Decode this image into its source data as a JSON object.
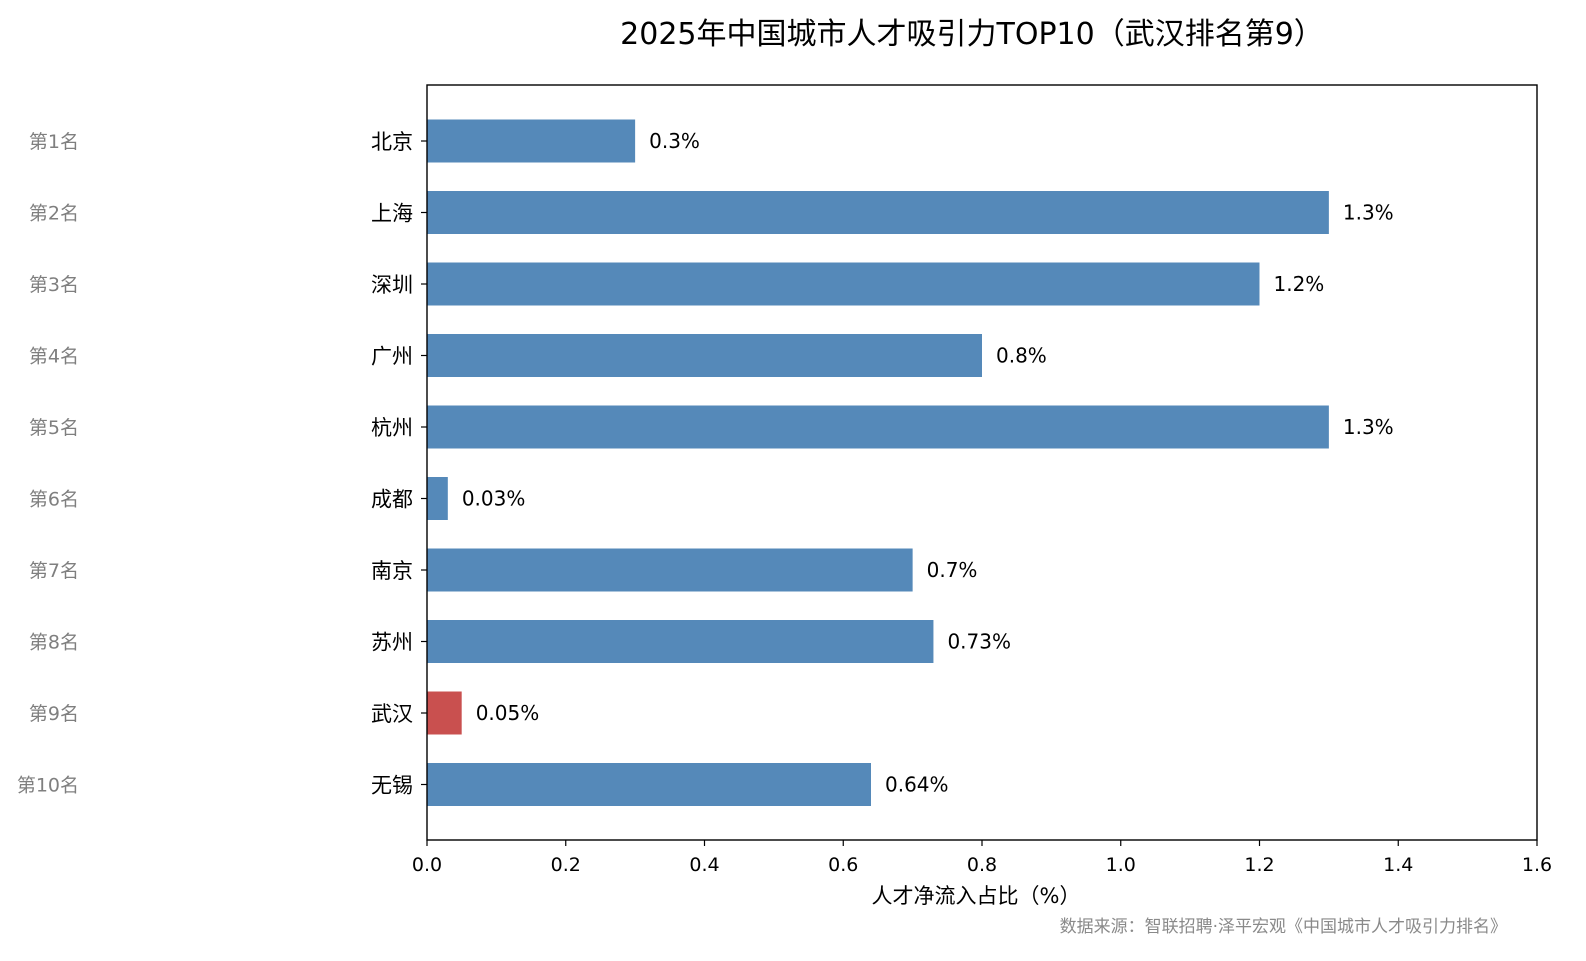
{
  "chart_data": {
    "type": "bar",
    "orientation": "horizontal",
    "title": "2025年中国城市人才吸引力TOP10（武汉排名第9）",
    "xlabel": "人才净流入占比（%）",
    "ylabel": "",
    "xlim": [
      0,
      1.6
    ],
    "xticks": [
      "0.0",
      "0.2",
      "0.4",
      "0.6",
      "0.8",
      "1.0",
      "1.2",
      "1.4",
      "1.6"
    ],
    "xtick_values": [
      0,
      0.2,
      0.4,
      0.6,
      0.8,
      1.0,
      1.2,
      1.4,
      1.6
    ],
    "ranks": [
      "第1名",
      "第2名",
      "第3名",
      "第4名",
      "第5名",
      "第6名",
      "第7名",
      "第8名",
      "第9名",
      "第10名"
    ],
    "categories": [
      "北京",
      "上海",
      "深圳",
      "广州",
      "杭州",
      "成都",
      "南京",
      "苏州",
      "武汉",
      "无锡"
    ],
    "values": [
      0.3,
      1.3,
      1.2,
      0.8,
      1.3,
      0.03,
      0.7,
      0.73,
      0.05,
      0.64
    ],
    "value_labels": [
      "0.3%",
      "1.3%",
      "1.2%",
      "0.8%",
      "1.3%",
      "0.03%",
      "0.7%",
      "0.73%",
      "0.05%",
      "0.64%"
    ],
    "highlight_category": "武汉",
    "grid": false,
    "legend": "none",
    "source": "数据来源：智联招聘·泽平宏观《中国城市人才吸引力排名》"
  },
  "colors": {
    "bar": "#5589b9",
    "highlight": "#c9504f",
    "rank_text": "#7f7f7f",
    "source_text": "#8a8a8a"
  }
}
